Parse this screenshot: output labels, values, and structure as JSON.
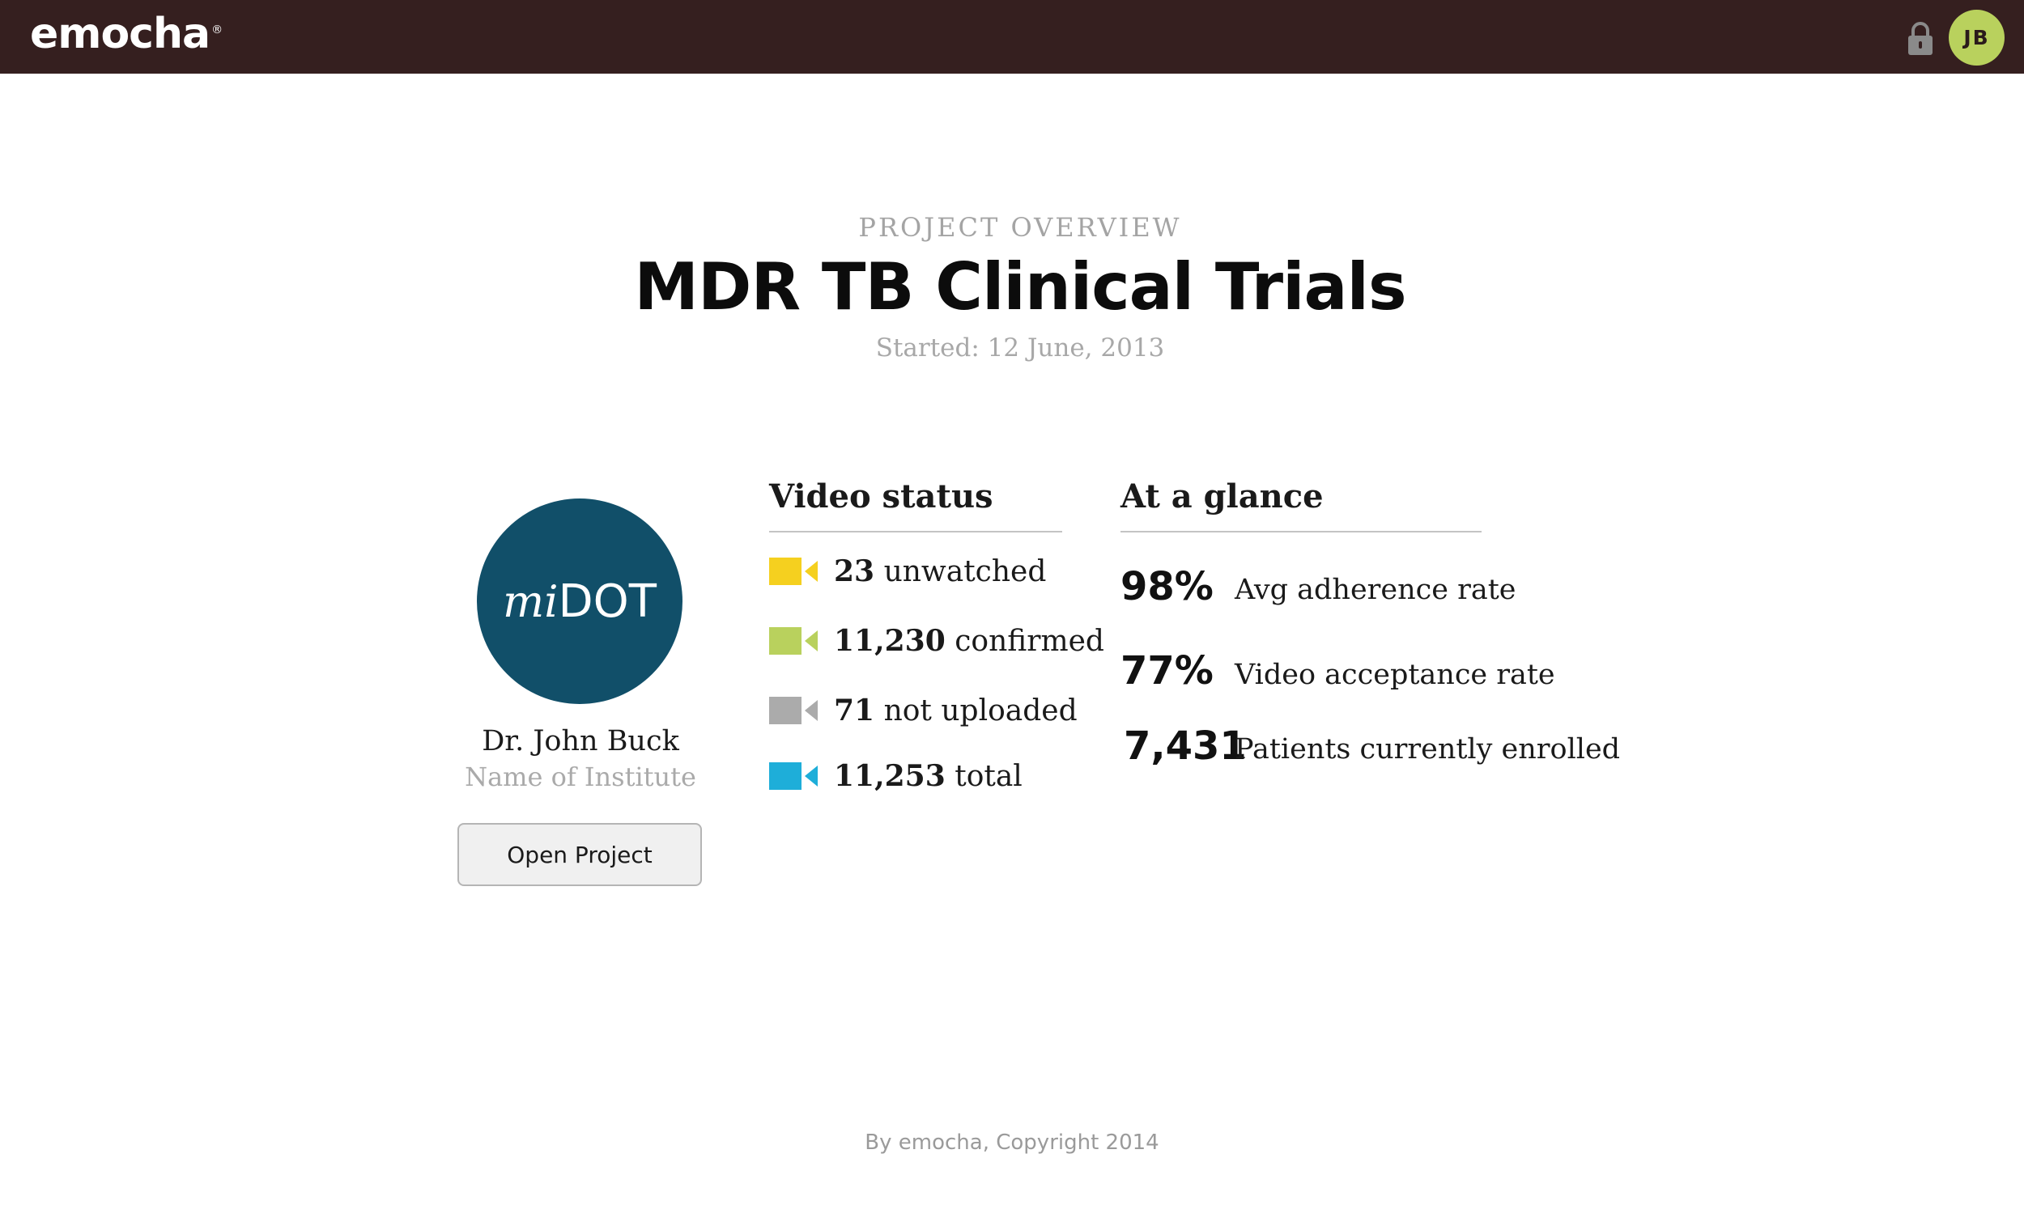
{
  "header": {
    "brand": "emocha",
    "brand_mark": "®",
    "avatar_initials": "JB",
    "lock_icon": "lock-icon"
  },
  "project": {
    "eyebrow": "PROJECT OVERVIEW",
    "title": "MDR TB Clinical Trials",
    "started": "Started: 12 June, 2013",
    "badge_prefix": "mi",
    "badge_main": "DOT",
    "owner": "Dr. John Buck",
    "institute": "Name of Institute",
    "open_button": "Open Project"
  },
  "video_status": {
    "heading": "Video status",
    "items": [
      {
        "count": "23",
        "label": "unwatched",
        "color": "#f5d01f",
        "icon": "video-camera-icon"
      },
      {
        "count": "11,230",
        "label": "confirmed",
        "color": "#b9d15d",
        "icon": "video-camera-icon"
      },
      {
        "count": "71",
        "label": "not uploaded",
        "color": "#ababab",
        "icon": "video-camera-icon"
      },
      {
        "count": "11,253",
        "label": "total",
        "color": "#1eaed9",
        "icon": "video-camera-icon"
      }
    ]
  },
  "at_a_glance": {
    "heading": "At a glance",
    "items": [
      {
        "value": "98%",
        "label": "Avg adherence rate"
      },
      {
        "value": "77%",
        "label": "Video acceptance rate"
      },
      {
        "value": "7,431",
        "label": "Patients currently enrolled"
      }
    ]
  },
  "footer": {
    "text": "By emocha, Copyright 2014"
  }
}
